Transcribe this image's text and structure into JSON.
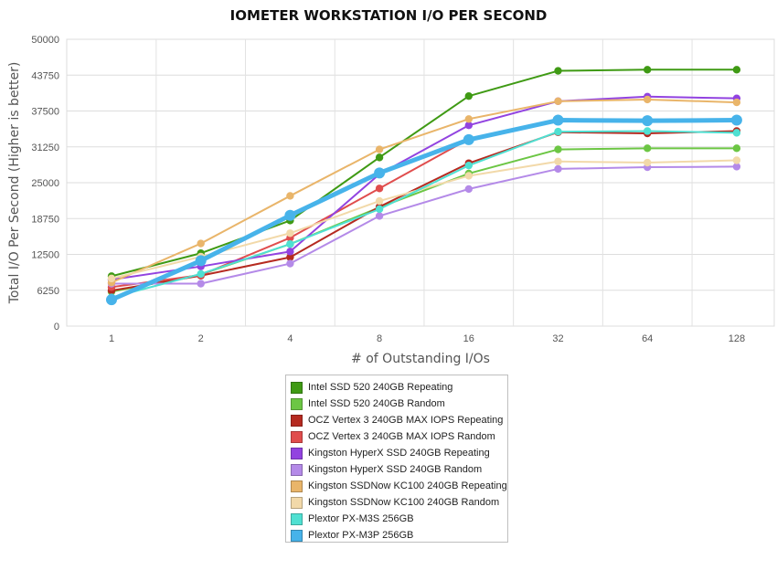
{
  "chart_data": {
    "type": "line",
    "title": "IOMETER WORKSTATION I/O PER SECOND",
    "xlabel": "# of Outstanding I/Os",
    "ylabel": "Total I/O Per Second (Higher is better)",
    "categories": [
      "1",
      "2",
      "4",
      "8",
      "16",
      "32",
      "64",
      "128"
    ],
    "ylim": [
      0,
      50000
    ],
    "yticks": [
      "0",
      "6250",
      "12500",
      "18750",
      "25000",
      "31250",
      "37500",
      "43750",
      "50000"
    ],
    "grid": true,
    "legend_position": "bottom",
    "series": [
      {
        "name": "Intel SSD 520 240GB Repeating",
        "color": "#3f9a14",
        "values": [
          8700,
          12700,
          18400,
          29400,
          40100,
          44500,
          44700,
          44700
        ]
      },
      {
        "name": "Intel SSD 520 240GB Random",
        "color": "#6cc644",
        "values": [
          6000,
          9000,
          14300,
          20700,
          26600,
          30800,
          31000,
          31000
        ]
      },
      {
        "name": "OCZ Vertex 3 240GB MAX IOPS Repeating",
        "color": "#b52a20",
        "values": [
          6200,
          8800,
          12000,
          20800,
          28400,
          33800,
          33600,
          34000
        ]
      },
      {
        "name": "OCZ Vertex 3 240GB MAX IOPS Random",
        "color": "#e04d4d",
        "values": [
          6800,
          8900,
          15400,
          24000,
          32600,
          35900,
          35700,
          35900
        ]
      },
      {
        "name": "Kingston HyperX SSD 240GB Repeating",
        "color": "#9243e0",
        "values": [
          8100,
          10400,
          13000,
          26500,
          35000,
          39200,
          40000,
          39700
        ]
      },
      {
        "name": "Kingston HyperX SSD 240GB Random",
        "color": "#b48ae8",
        "values": [
          7400,
          7400,
          10900,
          19200,
          23900,
          27400,
          27700,
          27800
        ]
      },
      {
        "name": "Kingston SSDNow KC100 240GB Repeating",
        "color": "#e9b56a",
        "values": [
          7600,
          14400,
          22700,
          30800,
          36100,
          39200,
          39500,
          39000
        ]
      },
      {
        "name": "Kingston SSDNow KC100 240GB Random",
        "color": "#f2d9a9",
        "values": [
          8300,
          12100,
          16200,
          21800,
          26200,
          28700,
          28500,
          28900
        ]
      },
      {
        "name": "Plextor PX-M3S 256GB",
        "color": "#4fe0d2",
        "values": [
          5000,
          9100,
          14300,
          20400,
          28000,
          33900,
          34000,
          33700
        ]
      },
      {
        "name": "Plextor PX-M3P 256GB",
        "color": "#47b3ea",
        "values": [
          4600,
          11400,
          19300,
          26700,
          32500,
          35900,
          35800,
          35900
        ]
      }
    ]
  }
}
